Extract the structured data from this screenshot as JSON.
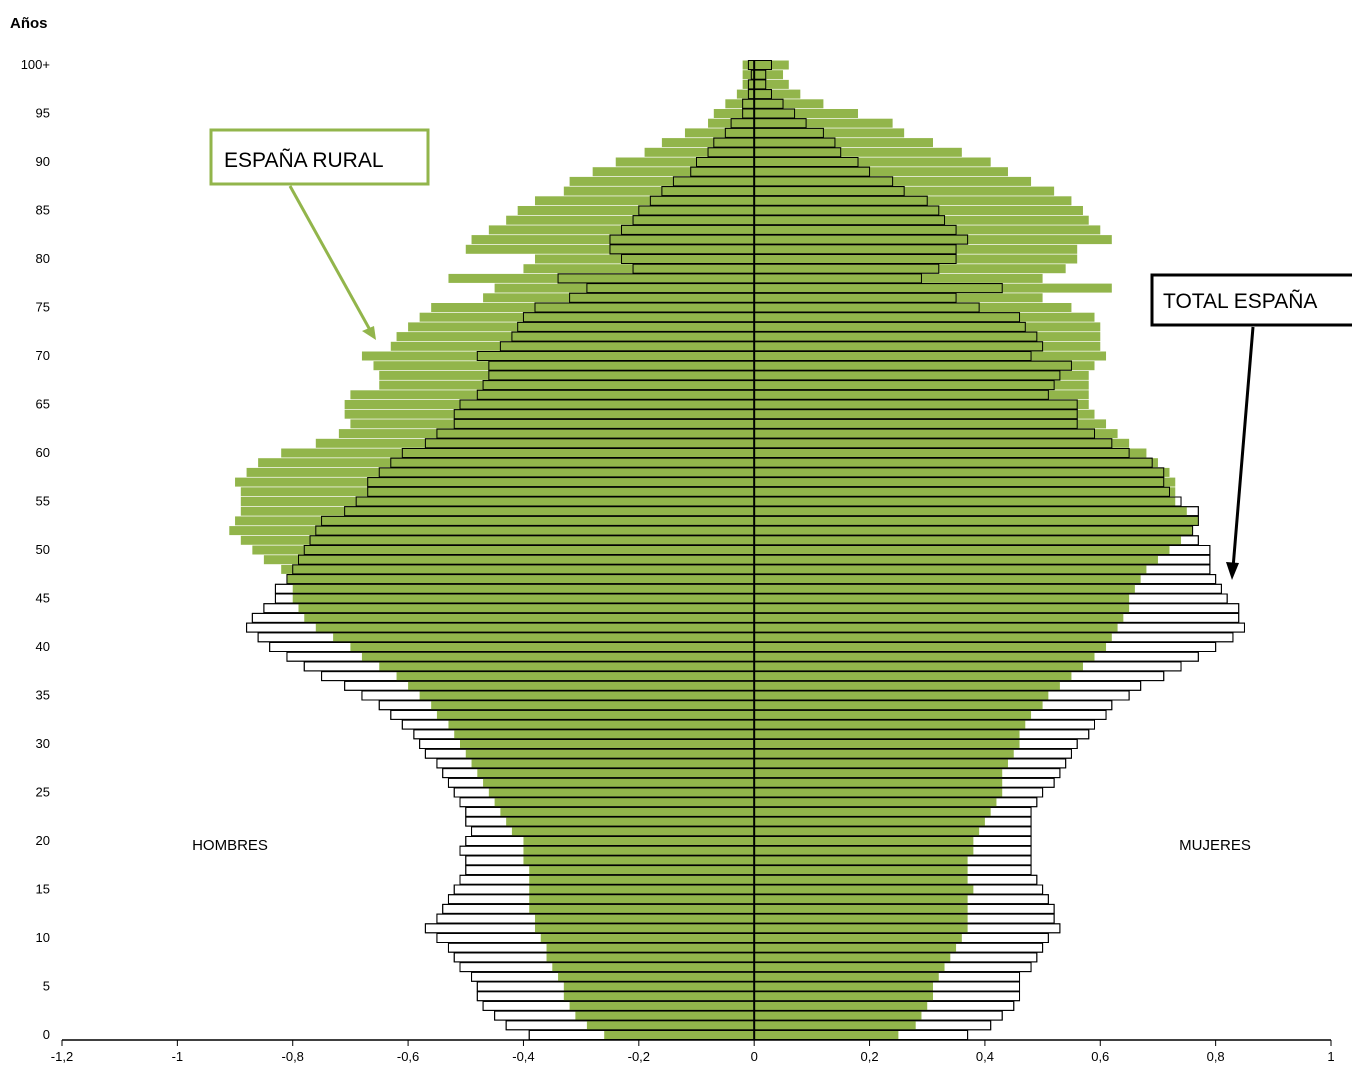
{
  "chart_data": {
    "type": "bar",
    "orientation": "horizontal-pyramid",
    "title": "",
    "ylabel": "Años",
    "xlabel": "",
    "xlim": [
      -1.2,
      1
    ],
    "ylim": [
      0,
      100
    ],
    "x_ticks": [
      -1.2,
      -1,
      -0.8,
      -0.6,
      -0.4,
      -0.2,
      0,
      0.2,
      0.4,
      0.6,
      0.8,
      1
    ],
    "x_tick_labels": [
      "-1,2",
      "-1",
      "-0,8",
      "-0,6",
      "-0,4",
      "-0,2",
      "0",
      "0,2",
      "0,4",
      "0,6",
      "0,8",
      "1"
    ],
    "y_tick_labels": [
      "0",
      "5",
      "10",
      "15",
      "20",
      "25",
      "30",
      "35",
      "40",
      "45",
      "50",
      "55",
      "60",
      "65",
      "70",
      "75",
      "80",
      "85",
      "90",
      "95",
      "100+"
    ],
    "grid": false,
    "side_labels": {
      "left": "HOMBRES",
      "right": "MUJERES"
    },
    "annotations": [
      {
        "text": "ESPAÑA RURAL",
        "border_color": "#92b54b"
      },
      {
        "text": "TOTAL ESPAÑA",
        "border_color": "#000000"
      }
    ],
    "colors": {
      "rural": "#92b54b",
      "total_fill": "#ffffff",
      "total_edge": "#000000"
    },
    "ages": [
      0,
      1,
      2,
      3,
      4,
      5,
      6,
      7,
      8,
      9,
      10,
      11,
      12,
      13,
      14,
      15,
      16,
      17,
      18,
      19,
      20,
      21,
      22,
      23,
      24,
      25,
      26,
      27,
      28,
      29,
      30,
      31,
      32,
      33,
      34,
      35,
      36,
      37,
      38,
      39,
      40,
      41,
      42,
      43,
      44,
      45,
      46,
      47,
      48,
      49,
      50,
      51,
      52,
      53,
      54,
      55,
      56,
      57,
      58,
      59,
      60,
      61,
      62,
      63,
      64,
      65,
      66,
      67,
      68,
      69,
      70,
      71,
      72,
      73,
      74,
      75,
      76,
      77,
      78,
      79,
      80,
      81,
      82,
      83,
      84,
      85,
      86,
      87,
      88,
      89,
      90,
      91,
      92,
      93,
      94,
      95,
      96,
      97,
      98,
      99,
      100
    ],
    "series": [
      {
        "name": "TOTAL ESPAÑA - HOMBRES",
        "values": [
          -0.39,
          -0.43,
          -0.45,
          -0.47,
          -0.48,
          -0.48,
          -0.49,
          -0.51,
          -0.52,
          -0.53,
          -0.55,
          -0.57,
          -0.55,
          -0.54,
          -0.53,
          -0.52,
          -0.51,
          -0.5,
          -0.5,
          -0.51,
          -0.5,
          -0.49,
          -0.5,
          -0.5,
          -0.51,
          -0.52,
          -0.53,
          -0.54,
          -0.55,
          -0.57,
          -0.58,
          -0.59,
          -0.61,
          -0.63,
          -0.65,
          -0.68,
          -0.71,
          -0.75,
          -0.78,
          -0.81,
          -0.84,
          -0.86,
          -0.88,
          -0.87,
          -0.85,
          -0.83,
          -0.83,
          -0.81,
          -0.8,
          -0.79,
          -0.78,
          -0.77,
          -0.76,
          -0.75,
          -0.71,
          -0.69,
          -0.67,
          -0.67,
          -0.65,
          -0.63,
          -0.61,
          -0.57,
          -0.55,
          -0.52,
          -0.52,
          -0.51,
          -0.48,
          -0.47,
          -0.46,
          -0.46,
          -0.48,
          -0.44,
          -0.42,
          -0.41,
          -0.4,
          -0.38,
          -0.32,
          -0.29,
          -0.34,
          -0.21,
          -0.23,
          -0.25,
          -0.25,
          -0.23,
          -0.21,
          -0.2,
          -0.18,
          -0.16,
          -0.14,
          -0.11,
          -0.1,
          -0.08,
          -0.07,
          -0.05,
          -0.04,
          -0.02,
          -0.02,
          -0.01,
          -0.01,
          -0.005,
          -0.01
        ]
      },
      {
        "name": "TOTAL ESPAÑA - MUJERES",
        "values": [
          0.37,
          0.41,
          0.43,
          0.45,
          0.46,
          0.46,
          0.46,
          0.48,
          0.49,
          0.5,
          0.51,
          0.53,
          0.52,
          0.52,
          0.51,
          0.5,
          0.49,
          0.48,
          0.48,
          0.48,
          0.48,
          0.48,
          0.48,
          0.48,
          0.49,
          0.5,
          0.52,
          0.53,
          0.54,
          0.55,
          0.56,
          0.58,
          0.59,
          0.61,
          0.62,
          0.65,
          0.67,
          0.71,
          0.74,
          0.77,
          0.8,
          0.83,
          0.85,
          0.84,
          0.84,
          0.82,
          0.81,
          0.8,
          0.79,
          0.79,
          0.79,
          0.77,
          0.76,
          0.77,
          0.77,
          0.74,
          0.72,
          0.71,
          0.71,
          0.69,
          0.65,
          0.62,
          0.59,
          0.56,
          0.56,
          0.56,
          0.51,
          0.52,
          0.53,
          0.55,
          0.48,
          0.5,
          0.49,
          0.47,
          0.46,
          0.39,
          0.35,
          0.43,
          0.29,
          0.32,
          0.35,
          0.35,
          0.37,
          0.35,
          0.33,
          0.32,
          0.3,
          0.26,
          0.24,
          0.2,
          0.18,
          0.15,
          0.14,
          0.12,
          0.09,
          0.07,
          0.05,
          0.03,
          0.02,
          0.02,
          0.03
        ]
      },
      {
        "name": "ESPAÑA RURAL - HOMBRES",
        "values": [
          -0.26,
          -0.29,
          -0.31,
          -0.32,
          -0.33,
          -0.33,
          -0.34,
          -0.35,
          -0.36,
          -0.36,
          -0.37,
          -0.38,
          -0.38,
          -0.39,
          -0.39,
          -0.39,
          -0.39,
          -0.39,
          -0.4,
          -0.4,
          -0.4,
          -0.42,
          -0.43,
          -0.44,
          -0.45,
          -0.46,
          -0.47,
          -0.48,
          -0.49,
          -0.5,
          -0.51,
          -0.52,
          -0.53,
          -0.55,
          -0.56,
          -0.58,
          -0.6,
          -0.62,
          -0.65,
          -0.68,
          -0.7,
          -0.73,
          -0.76,
          -0.78,
          -0.79,
          -0.8,
          -0.8,
          -0.81,
          -0.82,
          -0.85,
          -0.87,
          -0.89,
          -0.91,
          -0.9,
          -0.89,
          -0.89,
          -0.89,
          -0.9,
          -0.88,
          -0.86,
          -0.82,
          -0.76,
          -0.72,
          -0.7,
          -0.71,
          -0.71,
          -0.7,
          -0.65,
          -0.65,
          -0.66,
          -0.68,
          -0.63,
          -0.62,
          -0.6,
          -0.58,
          -0.56,
          -0.47,
          -0.45,
          -0.53,
          -0.4,
          -0.38,
          -0.5,
          -0.49,
          -0.46,
          -0.43,
          -0.41,
          -0.38,
          -0.33,
          -0.32,
          -0.28,
          -0.24,
          -0.19,
          -0.16,
          -0.12,
          -0.08,
          -0.07,
          -0.05,
          -0.03,
          -0.02,
          -0.02,
          -0.02
        ]
      },
      {
        "name": "ESPAÑA RURAL - MUJERES",
        "values": [
          0.25,
          0.28,
          0.29,
          0.3,
          0.31,
          0.31,
          0.32,
          0.33,
          0.34,
          0.35,
          0.36,
          0.37,
          0.37,
          0.37,
          0.37,
          0.38,
          0.37,
          0.37,
          0.37,
          0.38,
          0.38,
          0.39,
          0.4,
          0.41,
          0.42,
          0.43,
          0.43,
          0.43,
          0.44,
          0.45,
          0.46,
          0.46,
          0.47,
          0.48,
          0.5,
          0.51,
          0.53,
          0.55,
          0.57,
          0.59,
          0.61,
          0.62,
          0.63,
          0.64,
          0.65,
          0.65,
          0.66,
          0.67,
          0.68,
          0.7,
          0.72,
          0.74,
          0.76,
          0.77,
          0.75,
          0.73,
          0.73,
          0.73,
          0.72,
          0.7,
          0.68,
          0.65,
          0.63,
          0.61,
          0.59,
          0.58,
          0.58,
          0.58,
          0.58,
          0.59,
          0.61,
          0.6,
          0.6,
          0.6,
          0.59,
          0.55,
          0.5,
          0.62,
          0.5,
          0.54,
          0.56,
          0.56,
          0.62,
          0.6,
          0.58,
          0.57,
          0.55,
          0.52,
          0.48,
          0.44,
          0.41,
          0.36,
          0.31,
          0.26,
          0.24,
          0.18,
          0.12,
          0.08,
          0.06,
          0.05,
          0.06
        ]
      }
    ]
  }
}
